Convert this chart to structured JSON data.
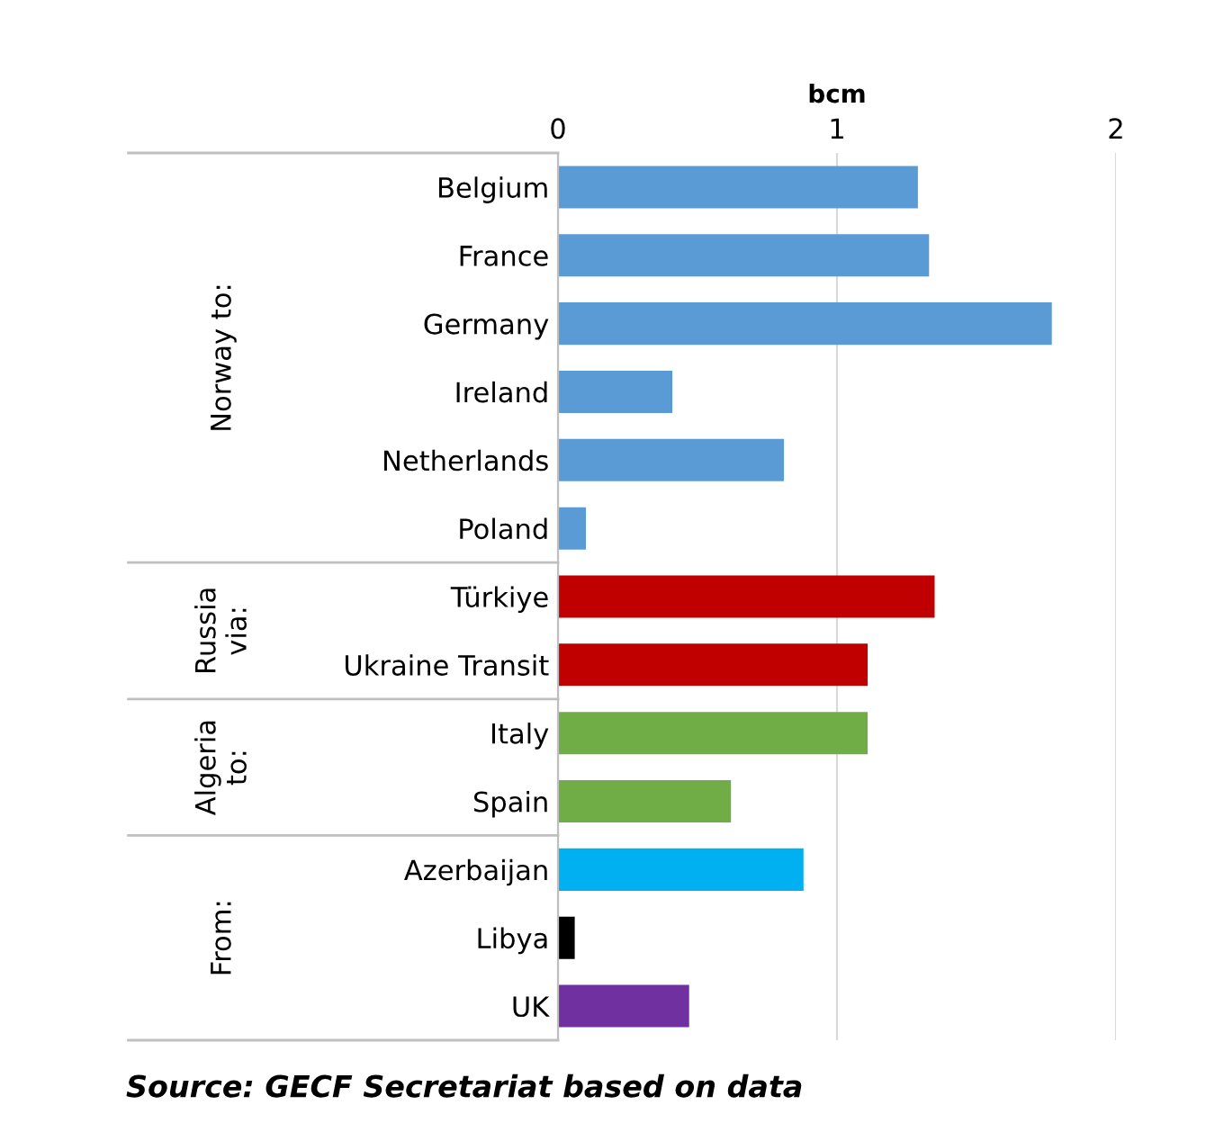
{
  "chart_data": {
    "type": "bar",
    "orientation": "horizontal",
    "xlabel": "bcm",
    "categories": [
      "Belgium",
      "France",
      "Germany",
      "Ireland",
      "Netherlands",
      "Poland",
      "Türkiye",
      "Ukraine Transit",
      "Italy",
      "Spain",
      "Azerbaijan",
      "Libya",
      "UK"
    ],
    "values": [
      1.29,
      1.33,
      1.77,
      0.41,
      0.81,
      0.1,
      1.35,
      1.11,
      1.11,
      0.62,
      0.88,
      0.06,
      0.47
    ],
    "colors": [
      "#5b9bd5",
      "#5b9bd5",
      "#5b9bd5",
      "#5b9bd5",
      "#5b9bd5",
      "#5b9bd5",
      "#c00000",
      "#c00000",
      "#70ad47",
      "#70ad47",
      "#00b0f0",
      "#000000",
      "#7030a0"
    ],
    "xlim": [
      0,
      2
    ],
    "xticks": [
      0,
      1,
      2
    ],
    "grid": "x",
    "annotations": [
      "Norway to:",
      "Russia via:",
      "Algeria to:",
      "From:",
      "Source: GECF Secretariat based on data"
    ]
  }
}
